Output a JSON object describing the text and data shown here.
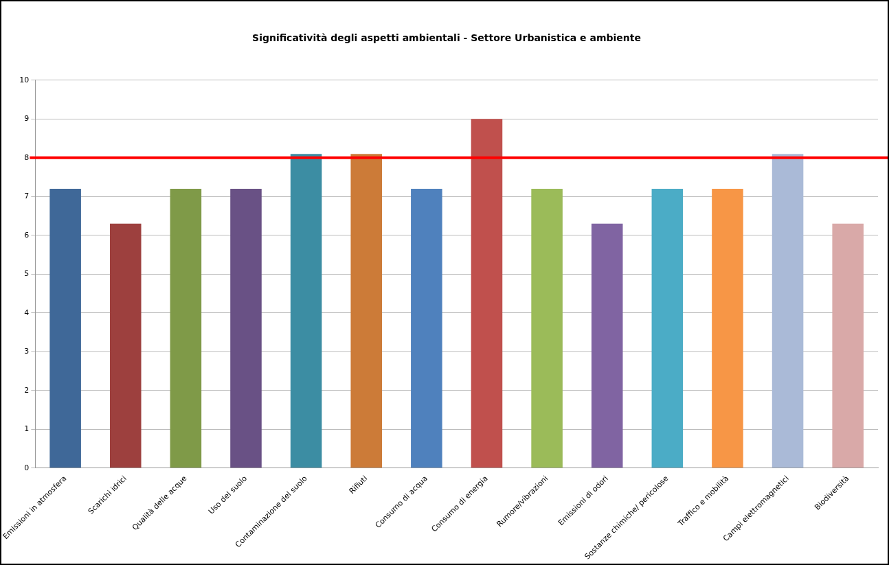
{
  "chart_data": {
    "type": "bar",
    "title": "Significatività degli aspetti ambientali - Settore Urbanistica e ambiente",
    "categories": [
      "Emissioni in atmosfera",
      "Scarichi idrici",
      "Qualità delle acque",
      "Uso del suolo",
      "Contaminazione del suolo",
      "Rifiuti",
      "Consumo di acqua",
      "Consumo di energia",
      "Rumore/vibrazioni",
      "Emissioni di odori",
      "Sostanze chimiche/ pericolose",
      "Traffico e mobilità",
      "Campi elettromagnetici",
      "Biodiversità"
    ],
    "values": [
      7.2,
      6.3,
      7.2,
      7.2,
      8.1,
      8.1,
      7.2,
      9,
      7.2,
      6.3,
      7.2,
      7.2,
      8.1,
      6.3
    ],
    "colors": [
      "#3f6898",
      "#9d403e",
      "#7f9a48",
      "#695185",
      "#3c8da3",
      "#cc7b38",
      "#4f81bd",
      "#c0504d",
      "#9bbb59",
      "#8064a2",
      "#4bacc6",
      "#f79646",
      "#aabad7",
      "#d9a9a8"
    ],
    "ylim": [
      0,
      10
    ],
    "yticks": [
      0,
      1,
      2,
      3,
      4,
      5,
      6,
      7,
      8,
      9,
      10
    ],
    "grid": "y",
    "legend": false,
    "ref_lines": [
      {
        "axis": "y",
        "value": 8,
        "color": "#ff0000"
      }
    ]
  }
}
